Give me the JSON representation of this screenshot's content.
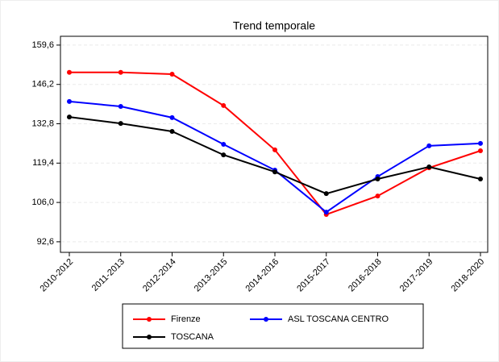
{
  "chart_data": {
    "type": "line",
    "title": "Trend temporale",
    "categories": [
      "2010-2012",
      "2011-2013",
      "2012-2014",
      "2013-2015",
      "2014-2016",
      "2015-2017",
      "2016-2018",
      "2017-2019",
      "2018-2020"
    ],
    "series": [
      {
        "name": "Firenze",
        "color": "#ff0000",
        "values": [
          150.3,
          150.3,
          149.7,
          139.0,
          123.9,
          101.9,
          108.2,
          117.8,
          123.6
        ]
      },
      {
        "name": "ASL TOSCANA CENTRO",
        "color": "#0000ff",
        "values": [
          140.4,
          138.7,
          134.9,
          125.8,
          117.0,
          102.7,
          114.8,
          125.3,
          126.1
        ]
      },
      {
        "name": "TOSCANA",
        "color": "#000000",
        "values": [
          135.1,
          132.9,
          130.2,
          122.2,
          116.4,
          109.0,
          114.0,
          118.1,
          114.0
        ]
      }
    ],
    "ylim": [
      89,
      162.6
    ],
    "yticks": [
      {
        "value": 92.6,
        "label": "92,6"
      },
      {
        "value": 106.0,
        "label": "106,0"
      },
      {
        "value": 119.4,
        "label": "119,4"
      },
      {
        "value": 132.8,
        "label": "132,8"
      },
      {
        "value": 146.2,
        "label": "146,2"
      },
      {
        "value": 159.6,
        "label": "159,6"
      }
    ],
    "grid": true
  }
}
